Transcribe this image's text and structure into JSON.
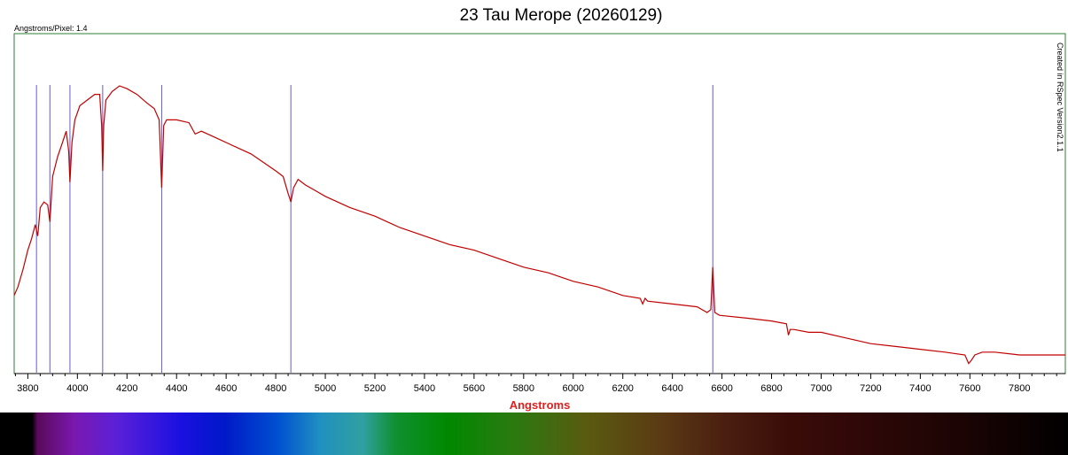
{
  "chart_data": {
    "type": "line",
    "title": "23 Tau Merope (20260129)",
    "subtitle": "Angstroms/Pixel: 1.4",
    "watermark": "Created in RSpec Version2.1.1",
    "xlabel": "Angstroms",
    "ylabel": "",
    "xlim": [
      3745,
      7985
    ],
    "ylim": [
      0,
      1.0
    ],
    "x_ticks": [
      3800,
      4000,
      4200,
      4400,
      4600,
      4800,
      5000,
      5200,
      5400,
      5600,
      5800,
      6000,
      6200,
      6400,
      6600,
      6800,
      7000,
      7200,
      7400,
      7600,
      7800
    ],
    "x_tick_labels": [
      "3800",
      "4000",
      "4200",
      "4400",
      "4600",
      "4800",
      "5000",
      "5200",
      "5400",
      "5600",
      "5800",
      "6000",
      "6200",
      "6400",
      "6600",
      "6800",
      "7000",
      "7200",
      "7400",
      "7600",
      "7800"
    ],
    "grid": false,
    "line_color": "#c00000",
    "marker_color": "#6a5acd",
    "plot_border_color": "#2e7d32",
    "marker_lines": [
      3835,
      3889,
      3970,
      4102,
      4340,
      4861,
      6563
    ],
    "series": [
      {
        "x": [
          3745,
          3760,
          3780,
          3800,
          3815,
          3830,
          3840,
          3850,
          3865,
          3880,
          3889,
          3900,
          3920,
          3940,
          3955,
          3965,
          3970,
          3978,
          3990,
          4010,
          4040,
          4070,
          4090,
          4098,
          4102,
          4106,
          4115,
          4140,
          4170,
          4200,
          4240,
          4280,
          4310,
          4330,
          4340,
          4348,
          4360,
          4400,
          4450,
          4475,
          4500,
          4550,
          4600,
          4650,
          4700,
          4750,
          4800,
          4830,
          4850,
          4861,
          4872,
          4890,
          4920,
          4960,
          5000,
          5050,
          5100,
          5200,
          5300,
          5400,
          5500,
          5600,
          5700,
          5800,
          5900,
          6000,
          6100,
          6200,
          6270,
          6280,
          6290,
          6300,
          6400,
          6500,
          6540,
          6555,
          6563,
          6571,
          6590,
          6700,
          6800,
          6860,
          6868,
          6875,
          6890,
          6950,
          7000,
          7100,
          7200,
          7300,
          7400,
          7500,
          7580,
          7595,
          7605,
          7620,
          7650,
          7700,
          7800,
          7900,
          7985
        ],
        "y": [
          0.26,
          0.29,
          0.35,
          0.42,
          0.46,
          0.51,
          0.47,
          0.57,
          0.59,
          0.58,
          0.52,
          0.68,
          0.75,
          0.8,
          0.84,
          0.77,
          0.66,
          0.8,
          0.88,
          0.93,
          0.95,
          0.97,
          0.97,
          0.86,
          0.7,
          0.86,
          0.95,
          0.98,
          1.0,
          0.99,
          0.97,
          0.94,
          0.92,
          0.88,
          0.64,
          0.86,
          0.88,
          0.88,
          0.87,
          0.83,
          0.84,
          0.82,
          0.8,
          0.78,
          0.76,
          0.73,
          0.7,
          0.68,
          0.62,
          0.59,
          0.64,
          0.67,
          0.65,
          0.63,
          0.61,
          0.59,
          0.57,
          0.54,
          0.5,
          0.47,
          0.44,
          0.42,
          0.39,
          0.36,
          0.34,
          0.31,
          0.29,
          0.26,
          0.25,
          0.23,
          0.25,
          0.24,
          0.23,
          0.22,
          0.2,
          0.21,
          0.36,
          0.2,
          0.19,
          0.18,
          0.17,
          0.16,
          0.12,
          0.14,
          0.14,
          0.13,
          0.13,
          0.11,
          0.09,
          0.08,
          0.07,
          0.06,
          0.05,
          0.02,
          0.03,
          0.05,
          0.06,
          0.06,
          0.05,
          0.05,
          0.05
        ]
      }
    ]
  }
}
